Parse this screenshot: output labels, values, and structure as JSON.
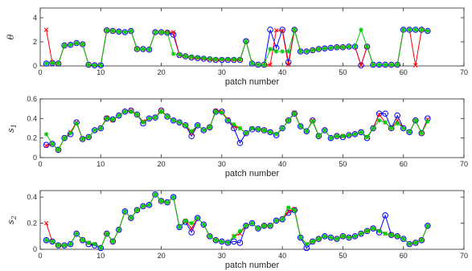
{
  "figure": {
    "series_colors": {
      "blue": "#0000ff",
      "red": "#ff0000",
      "green": "#00cc00"
    },
    "marker_styles": {
      "blue": "circle",
      "red": "x",
      "green": "star"
    }
  },
  "chart_data": [
    {
      "id": "theta",
      "type": "line",
      "ylabel_main": "θ",
      "ylabel_sub": "",
      "xlabel": "patch number",
      "xlim": [
        0,
        70
      ],
      "ylim": [
        0,
        4.8
      ],
      "xticks": [
        0,
        10,
        20,
        30,
        40,
        50,
        60,
        70
      ],
      "yticks": [
        0,
        2,
        4
      ],
      "ytick_labels": [
        "0",
        "2",
        "4"
      ],
      "x": [
        1,
        2,
        3,
        4,
        5,
        6,
        7,
        8,
        9,
        10,
        11,
        12,
        13,
        14,
        15,
        16,
        17,
        18,
        19,
        20,
        21,
        22,
        23,
        24,
        25,
        26,
        27,
        28,
        29,
        30,
        31,
        32,
        33,
        34,
        35,
        36,
        37,
        38,
        39,
        40,
        41,
        42,
        43,
        44,
        45,
        46,
        47,
        48,
        49,
        50,
        51,
        52,
        53,
        54,
        55,
        56,
        57,
        58,
        59,
        60,
        61,
        62,
        63,
        64
      ],
      "series": [
        {
          "color_key": "blue",
          "values": [
            0.2,
            0.25,
            0.2,
            1.7,
            1.75,
            1.9,
            1.8,
            0.1,
            0.05,
            0.05,
            2.95,
            2.9,
            2.85,
            2.8,
            2.9,
            1.4,
            1.4,
            1.35,
            2.8,
            2.8,
            2.75,
            2.6,
            0.9,
            0.8,
            0.7,
            0.65,
            0.6,
            0.55,
            0.5,
            0.5,
            0.5,
            0.5,
            0.5,
            2.05,
            0.2,
            0.1,
            0.1,
            3.0,
            1.5,
            3.0,
            0.3,
            3.0,
            1.2,
            1.2,
            1.3,
            1.4,
            1.45,
            1.5,
            1.55,
            1.55,
            1.6,
            1.6,
            0.05,
            1.6,
            0.1,
            0.1,
            0.1,
            0.1,
            0.1,
            3.0,
            3.0,
            3.0,
            3.0,
            2.9
          ]
        },
        {
          "color_key": "red",
          "values": [
            3.0,
            0.25,
            0.2,
            1.7,
            1.75,
            1.9,
            1.8,
            0.1,
            0.05,
            0.05,
            2.95,
            2.9,
            2.85,
            2.8,
            2.9,
            1.4,
            1.4,
            1.35,
            2.8,
            2.8,
            2.8,
            2.8,
            0.9,
            0.8,
            0.7,
            0.65,
            0.6,
            0.55,
            0.5,
            0.5,
            0.5,
            0.5,
            0.5,
            2.05,
            0.2,
            0.1,
            0.1,
            0.1,
            2.95,
            2.9,
            0.1,
            3.0,
            1.2,
            1.2,
            1.3,
            1.4,
            1.45,
            1.5,
            1.55,
            1.55,
            1.6,
            1.6,
            0.05,
            1.6,
            0.1,
            0.1,
            0.1,
            0.1,
            0.1,
            3.0,
            3.0,
            0.05,
            3.0,
            2.9
          ]
        },
        {
          "color_key": "green",
          "values": [
            0.2,
            0.25,
            0.2,
            1.7,
            1.75,
            1.9,
            1.8,
            0.1,
            0.05,
            0.05,
            2.95,
            2.9,
            2.85,
            2.8,
            2.9,
            1.4,
            1.4,
            1.35,
            2.8,
            2.8,
            2.75,
            1.0,
            0.95,
            0.8,
            0.75,
            0.7,
            0.65,
            0.6,
            0.55,
            0.55,
            0.55,
            0.55,
            0.55,
            2.05,
            0.2,
            0.1,
            0.1,
            1.4,
            1.2,
            1.2,
            1.2,
            3.0,
            1.2,
            1.2,
            1.3,
            1.4,
            1.45,
            1.5,
            1.55,
            1.55,
            1.6,
            1.6,
            3.0,
            1.6,
            0.1,
            0.1,
            0.1,
            0.1,
            0.1,
            3.0,
            3.0,
            3.0,
            3.0,
            2.9
          ]
        }
      ]
    },
    {
      "id": "s1",
      "type": "line",
      "ylabel_main": "s",
      "ylabel_sub": "1",
      "xlabel": "patch number",
      "xlim": [
        0,
        70
      ],
      "ylim": [
        0,
        0.6
      ],
      "xticks": [
        0,
        10,
        20,
        30,
        40,
        50,
        60,
        70
      ],
      "yticks": [
        0,
        0.2,
        0.4,
        0.6
      ],
      "ytick_labels": [
        "0",
        "0.2",
        "0.4",
        "0.6"
      ],
      "x": [
        1,
        2,
        3,
        4,
        5,
        6,
        7,
        8,
        9,
        10,
        11,
        12,
        13,
        14,
        15,
        16,
        17,
        18,
        19,
        20,
        21,
        22,
        23,
        24,
        25,
        26,
        27,
        28,
        29,
        30,
        31,
        32,
        33,
        34,
        35,
        36,
        37,
        38,
        39,
        40,
        41,
        42,
        43,
        44,
        45,
        46,
        47,
        48,
        49,
        50,
        51,
        52,
        53,
        54,
        55,
        56,
        57,
        58,
        59,
        60,
        61,
        62,
        63,
        64
      ],
      "series": [
        {
          "color_key": "blue",
          "values": [
            0.13,
            0.14,
            0.08,
            0.2,
            0.24,
            0.36,
            0.19,
            0.21,
            0.28,
            0.3,
            0.4,
            0.39,
            0.43,
            0.47,
            0.48,
            0.44,
            0.35,
            0.4,
            0.41,
            0.48,
            0.42,
            0.38,
            0.36,
            0.33,
            0.22,
            0.33,
            0.28,
            0.31,
            0.47,
            0.47,
            0.38,
            0.3,
            0.15,
            0.25,
            0.29,
            0.29,
            0.28,
            0.26,
            0.23,
            0.3,
            0.38,
            0.45,
            0.32,
            0.27,
            0.38,
            0.22,
            0.28,
            0.2,
            0.22,
            0.21,
            0.23,
            0.24,
            0.26,
            0.2,
            0.3,
            0.45,
            0.45,
            0.3,
            0.43,
            0.3,
            0.26,
            0.38,
            0.25,
            0.4
          ]
        },
        {
          "color_key": "red",
          "values": [
            0.12,
            0.14,
            0.08,
            0.2,
            0.26,
            0.36,
            0.19,
            0.21,
            0.28,
            0.3,
            0.41,
            0.38,
            0.43,
            0.47,
            0.48,
            0.44,
            0.37,
            0.4,
            0.41,
            0.48,
            0.42,
            0.38,
            0.36,
            0.33,
            0.25,
            0.33,
            0.28,
            0.31,
            0.48,
            0.47,
            0.39,
            0.32,
            0.3,
            0.25,
            0.3,
            0.29,
            0.28,
            0.26,
            0.24,
            0.3,
            0.38,
            0.46,
            0.32,
            0.27,
            0.38,
            0.22,
            0.28,
            0.2,
            0.22,
            0.22,
            0.23,
            0.24,
            0.26,
            0.21,
            0.3,
            0.44,
            0.36,
            0.3,
            0.38,
            0.3,
            0.26,
            0.38,
            0.25,
            0.39
          ]
        },
        {
          "color_key": "green",
          "values": [
            0.24,
            0.14,
            0.08,
            0.2,
            0.25,
            0.35,
            0.19,
            0.21,
            0.28,
            0.3,
            0.4,
            0.39,
            0.43,
            0.47,
            0.47,
            0.44,
            0.36,
            0.4,
            0.41,
            0.47,
            0.42,
            0.38,
            0.36,
            0.33,
            0.27,
            0.33,
            0.28,
            0.31,
            0.47,
            0.46,
            0.38,
            0.34,
            0.3,
            0.25,
            0.3,
            0.29,
            0.28,
            0.26,
            0.24,
            0.3,
            0.38,
            0.45,
            0.32,
            0.27,
            0.37,
            0.22,
            0.28,
            0.2,
            0.22,
            0.22,
            0.23,
            0.24,
            0.26,
            0.21,
            0.3,
            0.38,
            0.36,
            0.3,
            0.35,
            0.3,
            0.26,
            0.38,
            0.25,
            0.37
          ]
        }
      ]
    },
    {
      "id": "s2",
      "type": "line",
      "ylabel_main": "s",
      "ylabel_sub": "2",
      "xlabel": "patch number",
      "xlim": [
        0,
        70
      ],
      "ylim": [
        0,
        0.45
      ],
      "xticks": [
        0,
        10,
        20,
        30,
        40,
        50,
        60,
        70
      ],
      "yticks": [
        0,
        0.2,
        0.4
      ],
      "ytick_labels": [
        "0",
        "0.2",
        "0.4"
      ],
      "x": [
        1,
        2,
        3,
        4,
        5,
        6,
        7,
        8,
        9,
        10,
        11,
        12,
        13,
        14,
        15,
        16,
        17,
        18,
        19,
        20,
        21,
        22,
        23,
        24,
        25,
        26,
        27,
        28,
        29,
        30,
        31,
        32,
        33,
        34,
        35,
        36,
        37,
        38,
        39,
        40,
        41,
        42,
        43,
        44,
        45,
        46,
        47,
        48,
        49,
        50,
        51,
        52,
        53,
        54,
        55,
        56,
        57,
        58,
        59,
        60,
        61,
        62,
        63,
        64
      ],
      "series": [
        {
          "color_key": "blue",
          "values": [
            0.07,
            0.06,
            0.03,
            0.03,
            0.04,
            0.12,
            0.07,
            0.04,
            0.03,
            0.01,
            0.12,
            0.06,
            0.15,
            0.29,
            0.24,
            0.3,
            0.33,
            0.34,
            0.42,
            0.37,
            0.36,
            0.4,
            0.17,
            0.21,
            0.13,
            0.24,
            0.19,
            0.1,
            0.07,
            0.06,
            0.05,
            0.06,
            0.05,
            0.18,
            0.2,
            0.16,
            0.18,
            0.18,
            0.22,
            0.23,
            0.28,
            0.3,
            0.09,
            0.01,
            0.06,
            0.08,
            0.1,
            0.09,
            0.08,
            0.1,
            0.09,
            0.1,
            0.12,
            0.14,
            0.16,
            0.13,
            0.26,
            0.11,
            0.1,
            0.08,
            0.04,
            0.05,
            0.07,
            0.18
          ]
        },
        {
          "color_key": "red",
          "values": [
            0.2,
            0.06,
            0.03,
            0.03,
            0.04,
            0.12,
            0.07,
            0.05,
            0.04,
            0.01,
            0.12,
            0.06,
            0.15,
            0.29,
            0.24,
            0.3,
            0.33,
            0.34,
            0.42,
            0.37,
            0.36,
            0.4,
            0.17,
            0.22,
            0.16,
            0.24,
            0.19,
            0.1,
            0.07,
            0.06,
            0.05,
            0.1,
            0.12,
            0.18,
            0.2,
            0.16,
            0.18,
            0.18,
            0.22,
            0.23,
            0.29,
            0.31,
            0.09,
            0.04,
            0.06,
            0.08,
            0.1,
            0.09,
            0.08,
            0.1,
            0.09,
            0.1,
            0.12,
            0.14,
            0.16,
            0.14,
            0.12,
            0.11,
            0.1,
            0.08,
            0.04,
            0.05,
            0.07,
            0.18
          ]
        },
        {
          "color_key": "green",
          "values": [
            0.07,
            0.06,
            0.03,
            0.03,
            0.04,
            0.12,
            0.07,
            0.05,
            0.04,
            0.01,
            0.12,
            0.06,
            0.15,
            0.29,
            0.24,
            0.3,
            0.33,
            0.34,
            0.42,
            0.37,
            0.36,
            0.4,
            0.17,
            0.22,
            0.2,
            0.24,
            0.19,
            0.1,
            0.07,
            0.06,
            0.05,
            0.1,
            0.14,
            0.18,
            0.2,
            0.16,
            0.18,
            0.18,
            0.22,
            0.23,
            0.32,
            0.3,
            0.09,
            0.04,
            0.06,
            0.08,
            0.1,
            0.09,
            0.08,
            0.1,
            0.09,
            0.1,
            0.12,
            0.14,
            0.16,
            0.14,
            0.12,
            0.11,
            0.1,
            0.08,
            0.04,
            0.05,
            0.07,
            0.18
          ]
        }
      ]
    }
  ]
}
